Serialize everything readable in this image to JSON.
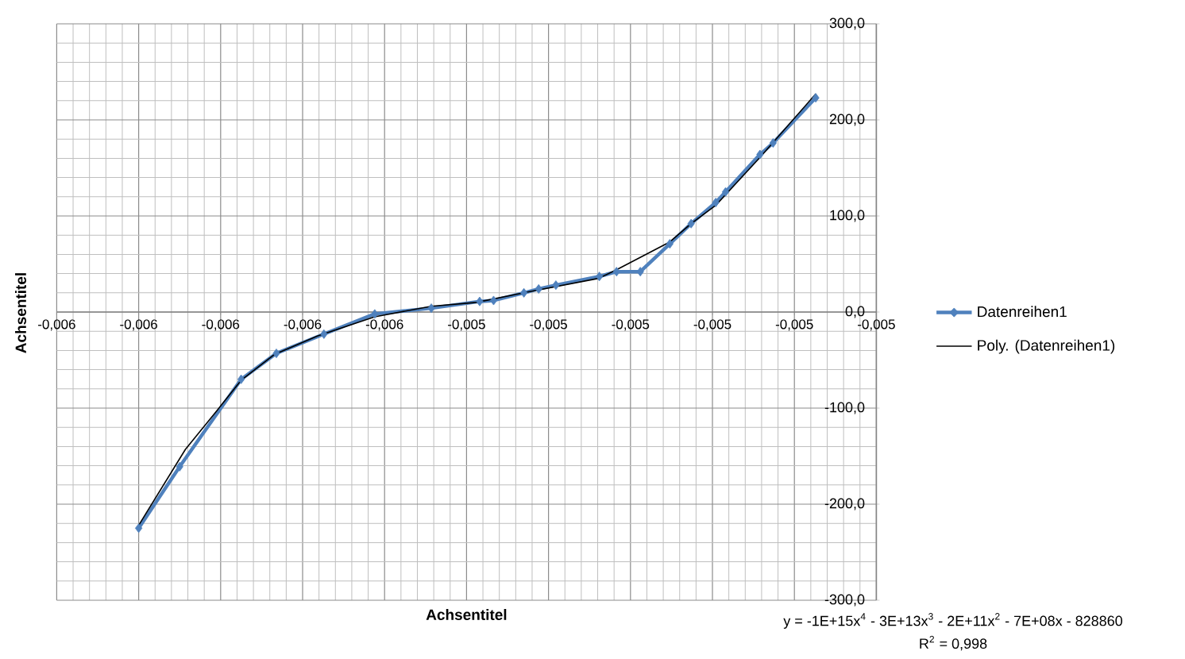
{
  "chart_data": {
    "type": "line",
    "xlabel": "Achsentitel",
    "ylabel": "Achsentitel",
    "annotations": [
      "y = -1E+15x$^{4}$ - 3E+13x$^{3}$ - 2E+11x$^{2}$ - 7E+08x - 828860",
      "R$^{2}$ = 0,998"
    ],
    "series": [
      {
        "name": "Datenreihen1",
        "color": "#4f81bd",
        "x": [
          -0.0059,
          -0.00585,
          -0.005775,
          -0.005732,
          -0.005674,
          -0.005612,
          -0.005543,
          -0.005484,
          -0.005467,
          -0.00543,
          -0.005412,
          -0.005391,
          -0.005338,
          -0.005317,
          -0.005288,
          -0.005252,
          -0.005226,
          -0.005196,
          -0.005184,
          -0.005142,
          -0.005126,
          -0.005074
        ],
        "values": [
          -225,
          -161,
          -70,
          -43,
          -23,
          -2,
          4,
          11,
          12,
          20,
          24,
          28,
          37,
          42,
          42,
          71,
          92,
          114,
          125,
          164,
          176,
          223
        ]
      },
      {
        "name": "Poly. (Datenreihen1)",
        "type": "line",
        "color": "#000000",
        "marker": "none",
        "x": [
          -0.0059,
          -0.005843,
          -0.005804,
          -0.005775,
          -0.005734,
          -0.005682,
          -0.005612,
          -0.005543,
          -0.005488,
          -0.005424,
          -0.005339,
          -0.005317,
          -0.005252,
          -0.005226,
          -0.005196,
          -0.005142,
          -0.005074
        ],
        "values": [
          -222,
          -143,
          -102,
          -71,
          -44,
          -25,
          -5,
          6,
          10,
          21,
          35,
          44,
          73,
          92,
          111,
          161,
          227
        ]
      }
    ],
    "xlim": [
      -0.006,
      -0.005
    ],
    "ylim": [
      -300,
      300
    ],
    "xticks": [
      {
        "value": -0.006,
        "label": "-0,006"
      },
      {
        "value": -0.0059,
        "label": "-0,006"
      },
      {
        "value": -0.0058,
        "label": "-0,006"
      },
      {
        "value": -0.0057,
        "label": "-0,006"
      },
      {
        "value": -0.0056,
        "label": "-0,006"
      },
      {
        "value": -0.0055,
        "label": "-0,005"
      },
      {
        "value": -0.0054,
        "label": "-0,005"
      },
      {
        "value": -0.0053,
        "label": "-0,005"
      },
      {
        "value": -0.0052,
        "label": "-0,005"
      },
      {
        "value": -0.0051,
        "label": "-0,005"
      },
      {
        "value": -0.005,
        "label": "-0,005"
      }
    ],
    "yticks": [
      {
        "value": -300,
        "label": "-300,0"
      },
      {
        "value": -200,
        "label": "-200,0"
      },
      {
        "value": -100,
        "label": "-100,0"
      },
      {
        "value": 0,
        "label": "0,0"
      },
      {
        "value": 100,
        "label": "100,0"
      },
      {
        "value": 200,
        "label": "200,0"
      },
      {
        "value": 300,
        "label": "300,0"
      }
    ],
    "grid": true,
    "legend": "right",
    "marker": "diamond",
    "line_style": "solid"
  }
}
